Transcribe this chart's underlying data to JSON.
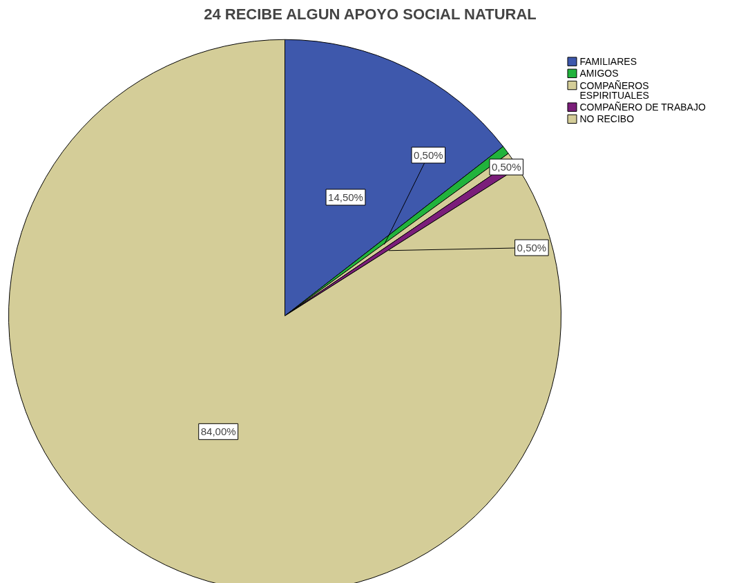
{
  "chart_data": {
    "type": "pie",
    "title": "24 RECIBE ALGUN APOYO SOCIAL NATURAL",
    "categories": [
      "FAMILIARES",
      "AMIGOS",
      "COMPAÑEROS ESPIRITUALES",
      "COMPAÑERO DE TRABAJO",
      "NO RECIBO"
    ],
    "values": [
      14.5,
      0.5,
      0.5,
      0.5,
      84.0
    ],
    "colors": [
      "#3e58ac",
      "#21b33c",
      "#d4cd98",
      "#7b1e7a",
      "#d4cd98"
    ],
    "value_labels": [
      "14,50%",
      "0,50%",
      "0,50%",
      "0,50%",
      "84,00%"
    ],
    "legend": "top right"
  }
}
